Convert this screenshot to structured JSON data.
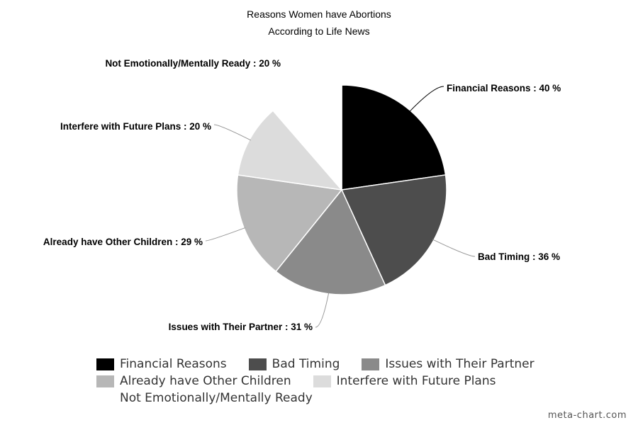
{
  "chart_data": {
    "type": "pie",
    "title": "Reasons Women have Abortions",
    "subtitle": "According to Life News",
    "categories": [
      "Financial Reasons",
      "Bad Timing",
      "Issues with Their Partner",
      "Already have Other Children",
      "Interfere with Future Plans",
      "Not Emotionally/Mentally Ready"
    ],
    "values": [
      40,
      36,
      31,
      29,
      20,
      20
    ],
    "unit": "%",
    "slice_labels": [
      "Financial Reasons : 40 %",
      "Bad Timing : 36 %",
      "Issues with Their Partner : 31 %",
      "Already have Other Children : 29 %",
      "Interfere with Future Plans : 20 %",
      "Not Emotionally/Mentally Ready : 20 %"
    ],
    "colors": [
      "#000000",
      "#4d4d4d",
      "#8a8a8a",
      "#b7b7b7",
      "#dcdcdc",
      "#ffffff"
    ],
    "legend_position": "bottom"
  },
  "watermark": "meta-chart.com"
}
